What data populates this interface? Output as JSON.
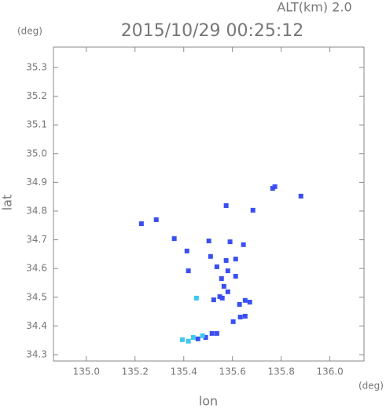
{
  "chart_data": {
    "type": "scatter",
    "title": "2015/10/29 00:25:12",
    "subtitle": "ALT(km)  2.0",
    "x_label": "lon",
    "x_unit": "(deg)",
    "y_label": "lat",
    "y_unit": "(deg)",
    "xlim": [
      134.865,
      136.14
    ],
    "ylim": [
      34.278,
      35.371
    ],
    "xticks": [
      {
        "value": 135,
        "label": "135.0"
      },
      135.2,
      135.4,
      135.6,
      135.8,
      {
        "value": 136,
        "label": "136.0"
      }
    ],
    "yticks": [
      34.3,
      34.4,
      34.5,
      34.6,
      34.7,
      34.8,
      34.9,
      {
        "value": 35,
        "label": "35.0"
      },
      35.1,
      35.2,
      35.3
    ],
    "grid": false,
    "series": [
      {
        "color": "#3a4ff2",
        "x": [
          135.765,
          135.774,
          135.881,
          135.574,
          135.684,
          135.226,
          135.287,
          135.361,
          135.413,
          135.503,
          135.51,
          135.59,
          135.645,
          135.574,
          135.536,
          135.581,
          135.555,
          135.613,
          135.565,
          135.548,
          135.523,
          135.581,
          135.419,
          135.613,
          135.652,
          135.671,
          135.629,
          135.632,
          135.603,
          135.652,
          135.558,
          135.536,
          135.516,
          135.49,
          135.458
        ],
        "values": [
          34.879,
          34.885,
          34.852,
          34.819,
          34.803,
          34.756,
          34.77,
          34.704,
          34.661,
          34.696,
          34.642,
          34.693,
          34.683,
          34.628,
          34.606,
          34.592,
          34.565,
          34.573,
          34.538,
          34.502,
          34.491,
          34.519,
          34.592,
          34.633,
          34.489,
          34.483,
          34.475,
          34.431,
          34.415,
          34.434,
          34.497,
          34.374,
          34.374,
          34.36,
          34.355
        ]
      },
      {
        "color": "#3cc8f0",
        "x": [
          135.452,
          135.419,
          135.394,
          135.439,
          135.477
        ],
        "values": [
          34.497,
          34.347,
          34.352,
          34.36,
          34.366
        ]
      }
    ]
  }
}
